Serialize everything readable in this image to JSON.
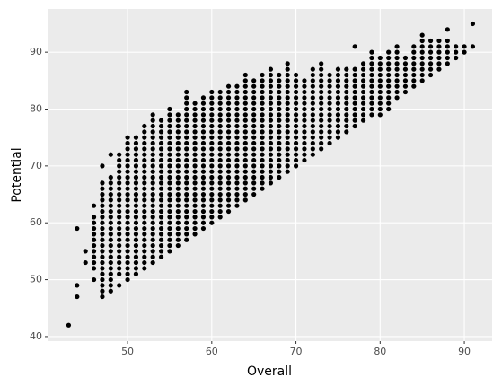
{
  "chart_data": {
    "type": "scatter",
    "x_label": "Overall",
    "y_label": "Potential",
    "color": "#000000",
    "grid": true,
    "panel_color": "#ebebeb",
    "xlim": [
      40.5,
      93.3
    ],
    "ylim": [
      39.2,
      97.6
    ],
    "xticks": [
      50,
      60,
      70,
      80,
      90
    ],
    "yticks": [
      40,
      50,
      60,
      70,
      80,
      90
    ],
    "x": [
      43,
      44,
      44,
      44,
      45,
      45,
      46,
      46,
      46,
      46,
      46,
      46,
      46,
      46,
      46,
      46,
      46,
      46,
      47,
      47,
      47,
      47,
      47,
      47,
      47,
      47,
      47,
      47,
      47,
      47,
      47,
      47,
      47,
      47,
      47,
      47,
      47,
      47,
      47,
      47,
      48,
      48,
      48,
      48,
      48,
      48,
      48,
      48,
      48,
      48,
      48,
      48,
      48,
      48,
      48,
      48,
      48,
      48,
      48,
      48,
      48,
      48,
      49,
      49,
      49,
      49,
      49,
      49,
      49,
      49,
      49,
      49,
      49,
      49,
      49,
      49,
      49,
      49,
      49,
      49,
      49,
      49,
      49,
      49,
      49,
      50,
      50,
      50,
      50,
      50,
      50,
      50,
      50,
      50,
      50,
      50,
      50,
      50,
      50,
      50,
      50,
      50,
      50,
      50,
      50,
      50,
      50,
      50,
      50,
      50,
      50,
      51,
      51,
      51,
      51,
      51,
      51,
      51,
      51,
      51,
      51,
      51,
      51,
      51,
      51,
      51,
      51,
      51,
      51,
      51,
      51,
      51,
      51,
      51,
      51,
      51,
      52,
      52,
      52,
      52,
      52,
      52,
      52,
      52,
      52,
      52,
      52,
      52,
      52,
      52,
      52,
      52,
      52,
      52,
      52,
      52,
      52,
      52,
      52,
      52,
      52,
      52,
      53,
      53,
      53,
      53,
      53,
      53,
      53,
      53,
      53,
      53,
      53,
      53,
      53,
      53,
      53,
      53,
      53,
      53,
      53,
      53,
      53,
      53,
      53,
      53,
      53,
      53,
      53,
      54,
      54,
      54,
      54,
      54,
      54,
      54,
      54,
      54,
      54,
      54,
      54,
      54,
      54,
      54,
      54,
      54,
      54,
      54,
      54,
      54,
      54,
      54,
      54,
      54,
      55,
      55,
      55,
      55,
      55,
      55,
      55,
      55,
      55,
      55,
      55,
      55,
      55,
      55,
      55,
      55,
      55,
      55,
      55,
      55,
      55,
      55,
      55,
      55,
      55,
      55,
      56,
      56,
      56,
      56,
      56,
      56,
      56,
      56,
      56,
      56,
      56,
      56,
      56,
      56,
      56,
      56,
      56,
      56,
      56,
      56,
      56,
      56,
      56,
      56,
      57,
      57,
      57,
      57,
      57,
      57,
      57,
      57,
      57,
      57,
      57,
      57,
      57,
      57,
      57,
      57,
      57,
      57,
      57,
      57,
      57,
      57,
      57,
      57,
      57,
      57,
      57,
      58,
      58,
      58,
      58,
      58,
      58,
      58,
      58,
      58,
      58,
      58,
      58,
      58,
      58,
      58,
      58,
      58,
      58,
      58,
      58,
      58,
      58,
      58,
      58,
      59,
      59,
      59,
      59,
      59,
      59,
      59,
      59,
      59,
      59,
      59,
      59,
      59,
      59,
      59,
      59,
      59,
      59,
      59,
      59,
      59,
      59,
      59,
      59,
      60,
      60,
      60,
      60,
      60,
      60,
      60,
      60,
      60,
      60,
      60,
      60,
      60,
      60,
      60,
      60,
      60,
      60,
      60,
      60,
      60,
      60,
      60,
      60,
      61,
      61,
      61,
      61,
      61,
      61,
      61,
      61,
      61,
      61,
      61,
      61,
      61,
      61,
      61,
      61,
      61,
      61,
      61,
      61,
      61,
      61,
      61,
      62,
      62,
      62,
      62,
      62,
      62,
      62,
      62,
      62,
      62,
      62,
      62,
      62,
      62,
      62,
      62,
      62,
      62,
      62,
      62,
      62,
      62,
      62,
      63,
      63,
      63,
      63,
      63,
      63,
      63,
      63,
      63,
      63,
      63,
      63,
      63,
      63,
      63,
      63,
      63,
      63,
      63,
      63,
      63,
      63,
      64,
      64,
      64,
      64,
      64,
      64,
      64,
      64,
      64,
      64,
      64,
      64,
      64,
      64,
      64,
      64,
      64,
      64,
      64,
      64,
      64,
      64,
      64,
      65,
      65,
      65,
      65,
      65,
      65,
      65,
      65,
      65,
      65,
      65,
      65,
      65,
      65,
      65,
      65,
      65,
      65,
      65,
      65,
      65,
      66,
      66,
      66,
      66,
      66,
      66,
      66,
      66,
      66,
      66,
      66,
      66,
      66,
      66,
      66,
      66,
      66,
      66,
      66,
      66,
      66,
      67,
      67,
      67,
      67,
      67,
      67,
      67,
      67,
      67,
      67,
      67,
      67,
      67,
      67,
      67,
      67,
      67,
      67,
      67,
      67,
      67,
      68,
      68,
      68,
      68,
      68,
      68,
      68,
      68,
      68,
      68,
      68,
      68,
      68,
      68,
      68,
      68,
      68,
      68,
      68,
      69,
      69,
      69,
      69,
      69,
      69,
      69,
      69,
      69,
      69,
      69,
      69,
      69,
      69,
      69,
      69,
      69,
      69,
      69,
      69,
      70,
      70,
      70,
      70,
      70,
      70,
      70,
      70,
      70,
      70,
      70,
      70,
      70,
      70,
      70,
      70,
      70,
      71,
      71,
      71,
      71,
      71,
      71,
      71,
      71,
      71,
      71,
      71,
      71,
      71,
      71,
      71,
      72,
      72,
      72,
      72,
      72,
      72,
      72,
      72,
      72,
      72,
      72,
      72,
      72,
      72,
      72,
      72,
      73,
      73,
      73,
      73,
      73,
      73,
      73,
      73,
      73,
      73,
      73,
      73,
      73,
      73,
      73,
      73,
      74,
      74,
      74,
      74,
      74,
      74,
      74,
      74,
      74,
      74,
      74,
      74,
      74,
      75,
      75,
      75,
      75,
      75,
      75,
      75,
      75,
      75,
      75,
      75,
      75,
      75,
      76,
      76,
      76,
      76,
      76,
      76,
      76,
      76,
      76,
      76,
      76,
      76,
      77,
      77,
      77,
      77,
      77,
      77,
      77,
      77,
      77,
      77,
      77,
      77,
      78,
      78,
      78,
      78,
      78,
      78,
      78,
      78,
      78,
      78,
      78,
      79,
      79,
      79,
      79,
      79,
      79,
      79,
      79,
      79,
      79,
      79,
      79,
      80,
      80,
      80,
      80,
      80,
      80,
      80,
      80,
      80,
      80,
      80,
      81,
      81,
      81,
      81,
      81,
      81,
      81,
      81,
      81,
      81,
      81,
      82,
      82,
      82,
      82,
      82,
      82,
      82,
      82,
      82,
      82,
      83,
      83,
      83,
      83,
      83,
      83,
      83,
      84,
      84,
      84,
      84,
      84,
      84,
      84,
      84,
      85,
      85,
      85,
      85,
      85,
      85,
      85,
      85,
      85,
      86,
      86,
      86,
      86,
      86,
      86,
      86,
      87,
      87,
      87,
      87,
      87,
      87,
      88,
      88,
      88,
      88,
      88,
      88,
      89,
      89,
      89,
      90,
      90,
      91,
      91
    ],
    "values": [
      42,
      47,
      49,
      59,
      53,
      55,
      50,
      52,
      53,
      54,
      55,
      56,
      57,
      58,
      59,
      60,
      61,
      63,
      47,
      48,
      49,
      50,
      51,
      52,
      53,
      54,
      55,
      56,
      57,
      58,
      59,
      60,
      61,
      62,
      63,
      64,
      65,
      66,
      67,
      70,
      48,
      49,
      50,
      51,
      52,
      53,
      54,
      55,
      56,
      57,
      58,
      59,
      60,
      61,
      62,
      63,
      64,
      65,
      66,
      67,
      68,
      72,
      49,
      51,
      52,
      53,
      54,
      55,
      56,
      57,
      58,
      59,
      60,
      61,
      62,
      63,
      64,
      65,
      66,
      67,
      68,
      69,
      70,
      71,
      72,
      50,
      51,
      52,
      53,
      54,
      55,
      56,
      57,
      58,
      59,
      60,
      61,
      62,
      63,
      64,
      65,
      66,
      67,
      68,
      69,
      70,
      71,
      72,
      73,
      74,
      75,
      51,
      52,
      53,
      54,
      55,
      56,
      57,
      58,
      59,
      60,
      61,
      62,
      63,
      64,
      65,
      66,
      67,
      68,
      69,
      70,
      71,
      72,
      73,
      74,
      75,
      52,
      53,
      54,
      55,
      56,
      57,
      58,
      59,
      60,
      61,
      62,
      63,
      64,
      65,
      66,
      67,
      68,
      69,
      70,
      71,
      72,
      73,
      74,
      75,
      76,
      77,
      53,
      54,
      55,
      56,
      57,
      58,
      59,
      60,
      61,
      62,
      63,
      64,
      65,
      66,
      67,
      68,
      69,
      70,
      71,
      72,
      73,
      74,
      75,
      76,
      77,
      78,
      79,
      54,
      55,
      56,
      57,
      58,
      59,
      60,
      61,
      62,
      63,
      64,
      65,
      66,
      67,
      68,
      69,
      70,
      71,
      72,
      73,
      74,
      75,
      76,
      77,
      78,
      55,
      56,
      57,
      58,
      59,
      60,
      61,
      62,
      63,
      64,
      65,
      66,
      67,
      68,
      69,
      70,
      71,
      72,
      73,
      74,
      75,
      76,
      77,
      78,
      79,
      80,
      56,
      57,
      58,
      59,
      60,
      61,
      62,
      63,
      64,
      65,
      66,
      67,
      68,
      69,
      70,
      71,
      72,
      73,
      74,
      75,
      76,
      77,
      78,
      79,
      57,
      58,
      59,
      60,
      61,
      62,
      63,
      64,
      65,
      66,
      67,
      68,
      69,
      70,
      71,
      72,
      73,
      74,
      75,
      76,
      77,
      78,
      79,
      80,
      81,
      82,
      83,
      58,
      59,
      60,
      61,
      62,
      63,
      64,
      65,
      66,
      67,
      68,
      69,
      70,
      71,
      72,
      73,
      74,
      75,
      76,
      77,
      78,
      79,
      80,
      81,
      59,
      60,
      61,
      62,
      63,
      64,
      65,
      66,
      67,
      68,
      69,
      70,
      71,
      72,
      73,
      74,
      75,
      76,
      77,
      78,
      79,
      80,
      81,
      82,
      60,
      61,
      62,
      63,
      64,
      65,
      66,
      67,
      68,
      69,
      70,
      71,
      72,
      73,
      74,
      75,
      76,
      77,
      78,
      79,
      80,
      81,
      82,
      83,
      61,
      62,
      63,
      64,
      65,
      66,
      67,
      68,
      69,
      70,
      71,
      72,
      73,
      74,
      75,
      76,
      77,
      78,
      79,
      80,
      81,
      82,
      83,
      62,
      63,
      64,
      65,
      66,
      67,
      68,
      69,
      70,
      71,
      72,
      73,
      74,
      75,
      76,
      77,
      78,
      79,
      80,
      81,
      82,
      83,
      84,
      63,
      64,
      65,
      66,
      67,
      68,
      69,
      70,
      71,
      72,
      73,
      74,
      75,
      76,
      77,
      78,
      79,
      80,
      81,
      82,
      83,
      84,
      64,
      65,
      66,
      67,
      68,
      69,
      70,
      71,
      72,
      73,
      74,
      75,
      76,
      77,
      78,
      79,
      80,
      81,
      82,
      83,
      84,
      85,
      86,
      65,
      66,
      67,
      68,
      69,
      70,
      71,
      72,
      73,
      74,
      75,
      76,
      77,
      78,
      79,
      80,
      81,
      82,
      83,
      84,
      85,
      66,
      67,
      68,
      69,
      70,
      71,
      72,
      73,
      74,
      75,
      76,
      77,
      78,
      79,
      80,
      81,
      82,
      83,
      84,
      85,
      86,
      67,
      68,
      69,
      70,
      71,
      72,
      73,
      74,
      75,
      76,
      77,
      78,
      79,
      80,
      81,
      82,
      83,
      84,
      85,
      86,
      87,
      68,
      69,
      70,
      71,
      72,
      73,
      74,
      75,
      76,
      77,
      78,
      79,
      80,
      81,
      82,
      83,
      84,
      85,
      86,
      69,
      70,
      71,
      72,
      73,
      74,
      75,
      76,
      77,
      78,
      79,
      80,
      81,
      82,
      83,
      84,
      85,
      86,
      87,
      88,
      70,
      71,
      72,
      73,
      74,
      75,
      76,
      77,
      78,
      79,
      80,
      81,
      82,
      83,
      84,
      85,
      86,
      71,
      72,
      73,
      74,
      75,
      76,
      77,
      78,
      79,
      80,
      81,
      82,
      83,
      84,
      85,
      72,
      73,
      74,
      75,
      76,
      77,
      78,
      79,
      80,
      81,
      82,
      83,
      84,
      85,
      86,
      87,
      73,
      74,
      75,
      76,
      77,
      78,
      79,
      80,
      81,
      82,
      83,
      84,
      85,
      86,
      87,
      88,
      74,
      75,
      76,
      77,
      78,
      79,
      80,
      81,
      82,
      83,
      84,
      85,
      86,
      75,
      76,
      77,
      78,
      79,
      80,
      81,
      82,
      83,
      84,
      85,
      86,
      87,
      76,
      77,
      78,
      79,
      80,
      81,
      82,
      83,
      84,
      85,
      86,
      87,
      77,
      78,
      79,
      80,
      81,
      82,
      83,
      84,
      85,
      86,
      87,
      91,
      78,
      79,
      80,
      81,
      82,
      83,
      84,
      85,
      86,
      87,
      88,
      79,
      80,
      81,
      82,
      83,
      84,
      85,
      86,
      87,
      88,
      89,
      90,
      79,
      80,
      81,
      82,
      83,
      84,
      85,
      86,
      87,
      88,
      89,
      80,
      81,
      82,
      83,
      84,
      85,
      86,
      87,
      88,
      89,
      90,
      82,
      83,
      84,
      85,
      86,
      87,
      88,
      89,
      90,
      91,
      83,
      84,
      85,
      86,
      87,
      88,
      89,
      84,
      85,
      86,
      87,
      88,
      89,
      90,
      91,
      85,
      86,
      87,
      88,
      89,
      90,
      91,
      92,
      93,
      86,
      87,
      88,
      89,
      90,
      91,
      92,
      87,
      88,
      89,
      90,
      91,
      92,
      88,
      89,
      90,
      91,
      92,
      94,
      89,
      90,
      91,
      90,
      91,
      91,
      95
    ]
  }
}
